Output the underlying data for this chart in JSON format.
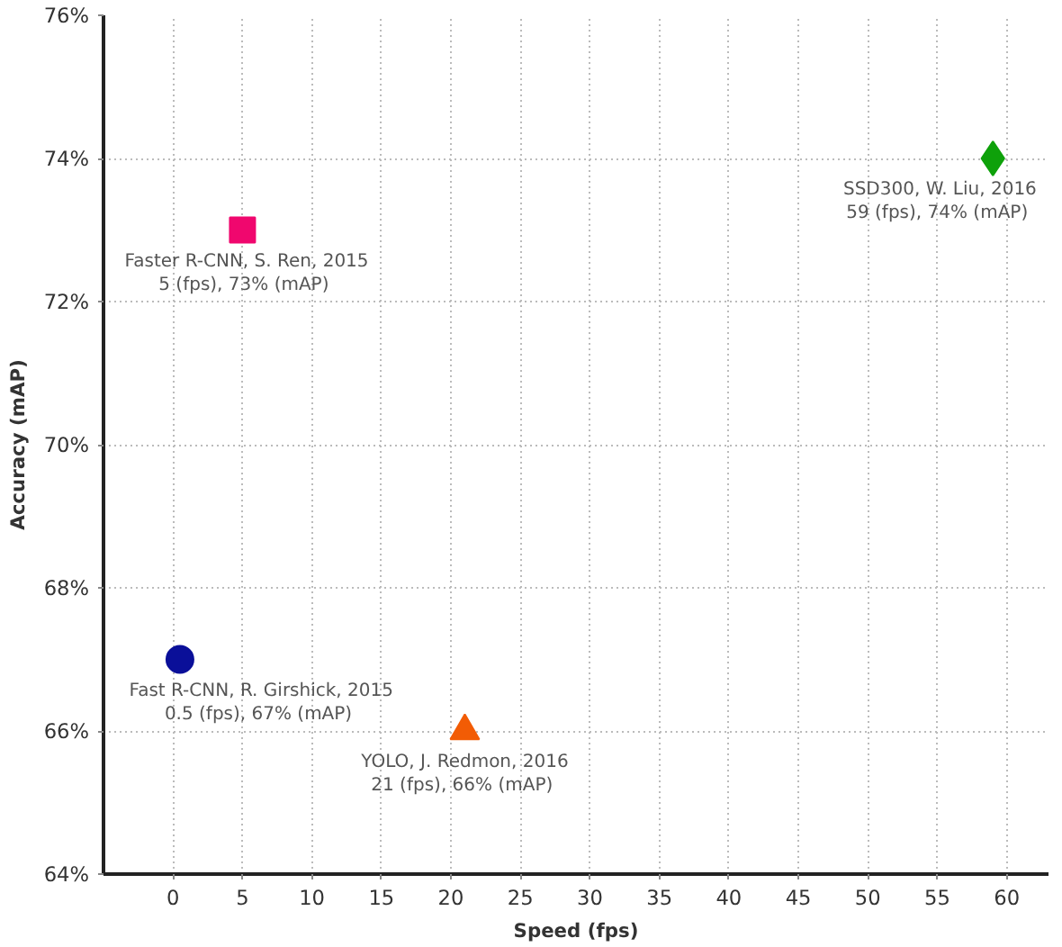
{
  "chart_data": {
    "type": "scatter",
    "xlabel": "Speed (fps)",
    "ylabel": "Accuracy (mAP)",
    "xlim": [
      -5,
      63
    ],
    "xticks": [
      0,
      5,
      10,
      15,
      20,
      25,
      30,
      35,
      40,
      45,
      50,
      55,
      60
    ],
    "ylim": [
      64,
      76
    ],
    "yticks": [
      {
        "value": 64,
        "label": "64%"
      },
      {
        "value": 66,
        "label": "66%"
      },
      {
        "value": 68,
        "label": "68%"
      },
      {
        "value": 70,
        "label": "70%"
      },
      {
        "value": 72,
        "label": "72%"
      },
      {
        "value": 74,
        "label": "74%"
      },
      {
        "value": 76,
        "label": "76%"
      }
    ],
    "grid": true,
    "series": [
      {
        "color": "#0a0f99",
        "marker": "circle",
        "x": [
          0.5
        ],
        "values": [
          67
        ]
      },
      {
        "color": "#f0076e",
        "marker": "square",
        "x": [
          5
        ],
        "values": [
          73
        ]
      },
      {
        "color": "#f25c05",
        "marker": "triangle",
        "x": [
          21
        ],
        "values": [
          66
        ]
      },
      {
        "color": "#0ea10a",
        "marker": "diamond",
        "x": [
          59
        ],
        "values": [
          74
        ]
      }
    ],
    "annotations": [
      {
        "text": "Fast R-CNN, R. Girshick, 2015\n0.5 (fps),  67% (mAP)",
        "x": 0.5,
        "y": 67
      },
      {
        "text": "Faster R-CNN, S. Ren, 2015\n5 (fps),  73% (mAP)",
        "x": 5,
        "y": 73
      },
      {
        "text": "YOLO, J. Redmon, 2016\n21 (fps),  66% (mAP)",
        "x": 21,
        "y": 66
      },
      {
        "text": "SSD300, W. Liu, 2016\n59 (fps),  74% (mAP)",
        "x": 59,
        "y": 74
      }
    ]
  }
}
